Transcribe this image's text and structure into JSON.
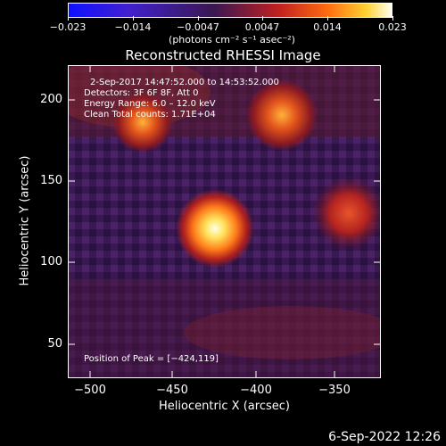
{
  "colorbar": {
    "tick_labels": [
      "−0.023",
      "−0.014",
      "−0.0047",
      "0.0047",
      "0.014",
      "0.023"
    ],
    "units_label": "(photons cm⁻² s⁻¹ asec⁻²)"
  },
  "title": "Reconstructed RHESSI Image",
  "annotations": {
    "time_range": "2-Sep-2017 14:47:52.000 to 14:53:52.000",
    "detectors": "Detectors: 3F 6F 8F, Att 0",
    "energy": "Energy Range: 6.0 – 12.0 keV",
    "clean": "Clean    Total counts: 1.71E+04",
    "peak": "Position of Peak = [−424,119]"
  },
  "axes": {
    "xlabel": "Heliocentric X (arcsec)",
    "ylabel": "Heliocentric Y (arcsec)",
    "x_ticks": [
      "−500",
      "−450",
      "−400",
      "−350"
    ],
    "y_ticks": [
      "200",
      "150",
      "100",
      "50"
    ]
  },
  "datestamp": "6-Sep-2022 12:26"
}
